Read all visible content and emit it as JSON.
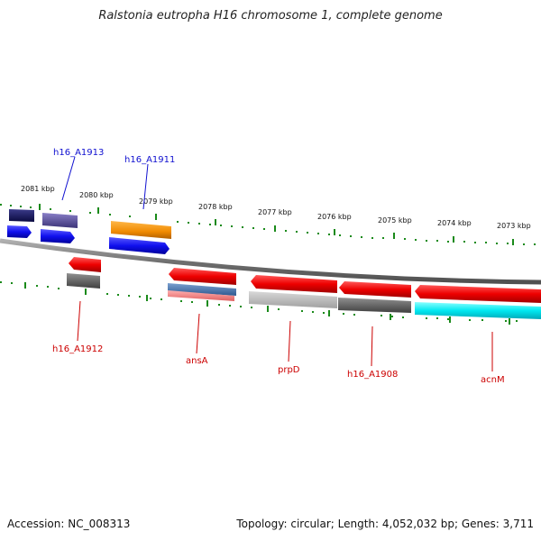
{
  "title": "Ralstonia eutropha H16 chromosome 1, complete genome",
  "footer": {
    "accession": "Accession: NC_008313",
    "summary": "Topology: circular; Length: 4,052,032 bp; Genes: 3,711"
  },
  "colors": {
    "backbone": "#808080",
    "ticks": "#1a8a1a",
    "forward_label": "#1010d0",
    "reverse_label": "#cc0000"
  },
  "scale_labels": [
    "2081 kbp",
    "2080 kbp",
    "2079 kbp",
    "2078 kbp",
    "2077 kbp",
    "2076 kbp",
    "2075 kbp",
    "2074 kbp",
    "2073 kbp"
  ],
  "forward_genes": [
    {
      "name": "h16_A1913"
    },
    {
      "name": "h16_A1911"
    }
  ],
  "reverse_genes": [
    {
      "name": "h16_A1912"
    },
    {
      "name": "ansA"
    },
    {
      "name": "prpD"
    },
    {
      "name": "h16_A1908"
    },
    {
      "name": "acnM"
    }
  ]
}
